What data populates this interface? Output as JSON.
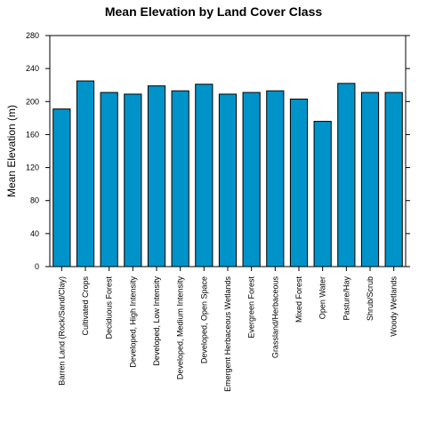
{
  "chart_data": {
    "type": "bar",
    "title": "Mean Elevation by Land Cover Class",
    "xlabel": "",
    "ylabel": "Mean Elevation (m)",
    "ylim": [
      0,
      280
    ],
    "yticks": [
      0,
      40,
      80,
      120,
      160,
      200,
      240,
      280
    ],
    "grid": false,
    "legend": "none",
    "bar_color": "#0093c9",
    "bar_edge_color": "#000000",
    "categories": [
      "Barren Land (Rock/Sand/Clay)",
      "Cultivated Crops",
      "Deciduous Forest",
      "Developed, High Intensity",
      "Developed, Low Intensity",
      "Developed, Medium Intensity",
      "Developed, Open Space",
      "Emergent Herbaceous Wetlands",
      "Evergreen Forest",
      "Grassland/Herbaceous",
      "Mixed Forest",
      "Open Water",
      "Pasture/Hay",
      "Shrub/Scrub",
      "Woody Wetlands"
    ],
    "values": [
      191,
      225,
      211,
      209,
      219,
      213,
      221,
      209,
      211,
      213,
      203,
      176,
      222,
      211,
      211
    ]
  }
}
